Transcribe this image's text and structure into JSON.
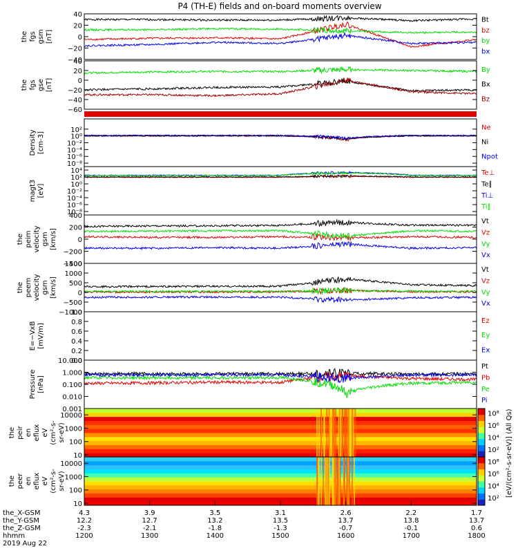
{
  "title": "P4 (TH-E) fields and on-board moments overview",
  "x_rows": [
    {
      "label": "the_X-GSM",
      "values": [
        "4.3",
        "3.9",
        "3.5",
        "3.1",
        "2.6",
        "2.2",
        "1.7"
      ]
    },
    {
      "label": "the_Y-GSM",
      "values": [
        "12.2",
        "12.7",
        "13.2",
        "13.5",
        "13.7",
        "13.8",
        "13.7"
      ]
    },
    {
      "label": "the_Z-GSM",
      "values": [
        "-2.3",
        "-2.1",
        "-1.8",
        "-1.3",
        "-0.7",
        "-0.1",
        "0.6"
      ]
    },
    {
      "label": "hhmm",
      "values": [
        "1200",
        "1300",
        "1400",
        "1500",
        "1600",
        "1700",
        "1800"
      ]
    },
    {
      "label": "2019 Aug 22",
      "values": []
    }
  ],
  "colorbar_label": "[eV/(cm²-s-sr-eV)] (All Qs)",
  "colors": {
    "black": "#000000",
    "red": "#dd0000",
    "green": "#00dd00",
    "blue": "#0000ee",
    "darkred": "#a00000"
  },
  "chart_data": [
    {
      "type": "line",
      "name": "fgs",
      "ylabel": [
        "the",
        "fgs",
        "gsm",
        "[nT]"
      ],
      "ylim": [
        -40,
        40
      ],
      "yticks": [
        "40",
        "20",
        "0",
        "−20",
        "−40"
      ],
      "ytick_values": [
        40,
        20,
        0,
        -20,
        -40
      ],
      "legend": [
        "Bt",
        "bz",
        "by",
        "bx"
      ],
      "x": [
        "12:00",
        "13:00",
        "14:00",
        "15:00",
        "16:00",
        "17:00",
        "18:00"
      ],
      "series": [
        {
          "name": "Bt",
          "values": [
            30,
            30,
            29,
            29,
            33,
            28,
            31
          ]
        },
        {
          "name": "bz",
          "values": [
            -5,
            -3,
            -2,
            -4,
            22,
            -18,
            -5
          ]
        },
        {
          "name": "by",
          "values": [
            12,
            12,
            14,
            13,
            10,
            7,
            8
          ]
        },
        {
          "name": "bx",
          "values": [
            -16,
            -14,
            -10,
            -12,
            2,
            -12,
            -10
          ]
        }
      ]
    },
    {
      "type": "line",
      "name": "fgs_gse",
      "ylabel": [
        "the",
        "fgs",
        "gse",
        "[nT]"
      ],
      "ylim": [
        -60,
        40
      ],
      "yticks": [
        "40",
        "20",
        "0",
        "−20",
        "−40",
        "−60"
      ],
      "ytick_values": [
        40,
        20,
        0,
        -20,
        -40,
        -60
      ],
      "legend": [
        "By",
        "Bx",
        "Bz"
      ],
      "x": [
        "12:00",
        "13:00",
        "14:00",
        "15:00",
        "16:00",
        "17:00",
        "18:00"
      ],
      "series": [
        {
          "name": "By",
          "values": [
            15,
            17,
            18,
            18,
            22,
            20,
            18
          ]
        },
        {
          "name": "Bx",
          "values": [
            -20,
            -18,
            -15,
            -14,
            -2,
            -22,
            -20
          ]
        },
        {
          "name": "Bz",
          "values": [
            -30,
            -30,
            -32,
            -28,
            0,
            -24,
            -28
          ]
        }
      ]
    },
    {
      "type": "line",
      "name": "density",
      "ylabel": [
        "Density",
        "[cm-3]"
      ],
      "ylog": true,
      "ylim": [
        1e-09,
        100000.0
      ],
      "yticks": [
        "10²",
        "10⁰",
        "10⁻²",
        "10⁻⁴",
        "10⁻⁶",
        "10⁻⁸"
      ],
      "ytick_values": [
        100,
        1,
        0.01,
        0.0001,
        1e-06,
        1e-08
      ],
      "legend": [
        "Ne",
        "Ni",
        "Npot"
      ],
      "x": [
        "12:00",
        "13:00",
        "14:00",
        "15:00",
        "16:00",
        "17:00",
        "18:00"
      ],
      "series": [
        {
          "name": "Ne",
          "values": [
            1,
            1,
            1,
            1,
            0.05,
            1,
            1
          ]
        },
        {
          "name": "Ni",
          "values": [
            1,
            1,
            1,
            1,
            0.1,
            1,
            1
          ]
        },
        {
          "name": "Npot",
          "values": [
            1.5,
            1.5,
            1.5,
            1.5,
            0.2,
            1.5,
            1.5
          ]
        }
      ]
    },
    {
      "type": "line",
      "name": "temperature",
      "ylabel": [
        "magt3",
        "[eV]"
      ],
      "ylog": true,
      "ylim": [
        1e-09,
        100000.0
      ],
      "yticks": [
        "10⁴",
        "10²",
        "10⁰",
        "10⁻²",
        "10⁻⁴",
        "10⁻⁶",
        "10⁻⁸"
      ],
      "ytick_values": [
        10000,
        100,
        1,
        0.01,
        0.0001,
        1e-06,
        1e-08
      ],
      "legend": [
        "Te⊥",
        "Te∥",
        "Ti⊥",
        "Ti∥"
      ],
      "x": [
        "12:00",
        "13:00",
        "14:00",
        "15:00",
        "16:00",
        "17:00",
        "18:00"
      ],
      "series": [
        {
          "name": "Te⊥",
          "values": [
            80,
            80,
            80,
            80,
            150,
            80,
            80
          ]
        },
        {
          "name": "Te∥",
          "values": [
            100,
            100,
            100,
            100,
            200,
            100,
            100
          ]
        },
        {
          "name": "Ti⊥",
          "values": [
            300,
            300,
            300,
            300,
            2000,
            300,
            300
          ]
        },
        {
          "name": "Ti∥",
          "values": [
            250,
            250,
            250,
            250,
            1500,
            250,
            250
          ]
        }
      ]
    },
    {
      "type": "line",
      "name": "peim_velocity",
      "ylabel": [
        "the",
        "peim",
        "velocity",
        "gsm",
        "[km/s]"
      ],
      "ylim": [
        -400,
        400
      ],
      "yticks": [
        "400",
        "200",
        "0",
        "−200",
        "−400"
      ],
      "ytick_values": [
        400,
        200,
        0,
        -200,
        -400
      ],
      "legend": [
        "Vt",
        "Vz",
        "Vy",
        "Vx"
      ],
      "x": [
        "12:00",
        "13:00",
        "14:00",
        "15:00",
        "16:00",
        "17:00",
        "18:00"
      ],
      "series": [
        {
          "name": "Vt",
          "values": [
            210,
            220,
            220,
            230,
            280,
            230,
            230
          ]
        },
        {
          "name": "Vz",
          "values": [
            40,
            30,
            30,
            40,
            20,
            40,
            30
          ]
        },
        {
          "name": "Vy",
          "values": [
            130,
            130,
            140,
            140,
            50,
            140,
            130
          ]
        },
        {
          "name": "Vx",
          "values": [
            -150,
            -150,
            -140,
            -150,
            -80,
            -150,
            -140
          ]
        }
      ]
    },
    {
      "type": "line",
      "name": "peem_velocity",
      "ylabel": [
        "the",
        "peem",
        "velocity",
        "gsm",
        "[km/s]"
      ],
      "ylim": [
        -1000,
        1500
      ],
      "yticks": [
        "1500",
        "1000",
        "500",
        "0",
        "−500",
        "−1000"
      ],
      "ytick_values": [
        1500,
        1000,
        500,
        0,
        -500,
        -1000
      ],
      "legend": [
        "Vt",
        "Vz",
        "Vy",
        "Vx"
      ],
      "x": [
        "12:00",
        "13:00",
        "14:00",
        "15:00",
        "16:00",
        "17:00",
        "18:00"
      ],
      "series": [
        {
          "name": "Vt",
          "values": [
            300,
            300,
            310,
            320,
            700,
            400,
            350
          ]
        },
        {
          "name": "Vz",
          "values": [
            20,
            20,
            20,
            30,
            100,
            40,
            30
          ]
        },
        {
          "name": "Vy",
          "values": [
            50,
            50,
            50,
            50,
            100,
            60,
            50
          ]
        },
        {
          "name": "Vx",
          "values": [
            -250,
            -250,
            -240,
            -250,
            -400,
            -280,
            -260
          ]
        }
      ]
    },
    {
      "type": "line",
      "name": "efield",
      "ylabel": [
        "E=−VxB",
        "[mV/m]"
      ],
      "ylim": [
        0,
        1.0
      ],
      "yticks": [
        "1.0",
        "0.8",
        "0.6",
        "0.4",
        "0.2",
        "0.0"
      ],
      "ytick_values": [
        1.0,
        0.8,
        0.6,
        0.4,
        0.2,
        0.0
      ],
      "legend": [
        "Ez",
        "Ey",
        "Ex"
      ],
      "x": [],
      "series": []
    },
    {
      "type": "line",
      "name": "pressure",
      "ylabel": [
        "Pressure",
        "[nPa]"
      ],
      "ylog": true,
      "ylim": [
        0.001,
        10
      ],
      "yticks": [
        "10.000",
        "1.000",
        "0.100",
        "0.010",
        "0.001"
      ],
      "ytick_values": [
        10,
        1,
        0.1,
        0.01,
        0.001
      ],
      "legend": [
        "Pt",
        "Pb",
        "Pe",
        "Pi"
      ],
      "x": [
        "12:00",
        "13:00",
        "14:00",
        "15:00",
        "16:00",
        "17:00",
        "18:00"
      ],
      "series": [
        {
          "name": "Pt",
          "values": [
            0.75,
            0.75,
            0.75,
            0.75,
            0.8,
            0.7,
            0.75
          ]
        },
        {
          "name": "Pb",
          "values": [
            0.12,
            0.13,
            0.15,
            0.14,
            0.5,
            0.3,
            0.25
          ]
        },
        {
          "name": "Pe",
          "values": [
            0.35,
            0.35,
            0.35,
            0.35,
            0.015,
            0.12,
            0.15
          ]
        },
        {
          "name": "Pi",
          "values": [
            0.6,
            0.6,
            0.6,
            0.6,
            0.3,
            0.6,
            0.6
          ]
        }
      ]
    },
    {
      "type": "heatmap",
      "name": "peir_energy_flux",
      "ylabel": [
        "the",
        "peir",
        "en",
        "eflux",
        "eV",
        "(cm²-s-",
        "sr-eV)"
      ],
      "ylog": true,
      "ylim": [
        7,
        30000
      ],
      "yticks": [
        "10000",
        "1000",
        "100",
        "10"
      ],
      "ytick_values": [
        10000,
        1000,
        100,
        10
      ]
    },
    {
      "type": "heatmap",
      "name": "peer_energy_flux",
      "ylabel": [
        "the",
        "peer",
        "en",
        "eflux",
        "eV",
        "(cm²-s-",
        "sr-eV)"
      ],
      "ylog": true,
      "ylim": [
        7,
        30000
      ],
      "yticks": [
        "10000",
        "1000",
        "100",
        "10"
      ],
      "ytick_values": [
        10000,
        1000,
        100,
        10
      ]
    },
    {
      "type": "colorbar",
      "name": "colorbar_peir",
      "ticks": [
        "10⁸",
        "10⁶",
        "10⁴",
        "10²"
      ],
      "tick_values": [
        100000000.0,
        1000000.0,
        10000.0,
        100.0
      ]
    },
    {
      "type": "colorbar",
      "name": "colorbar_peer",
      "ticks": [
        "10⁸",
        "10⁶",
        "10⁴",
        "10²"
      ],
      "tick_values": [
        100000000.0,
        1000000.0,
        10000.0,
        100.0
      ]
    }
  ]
}
